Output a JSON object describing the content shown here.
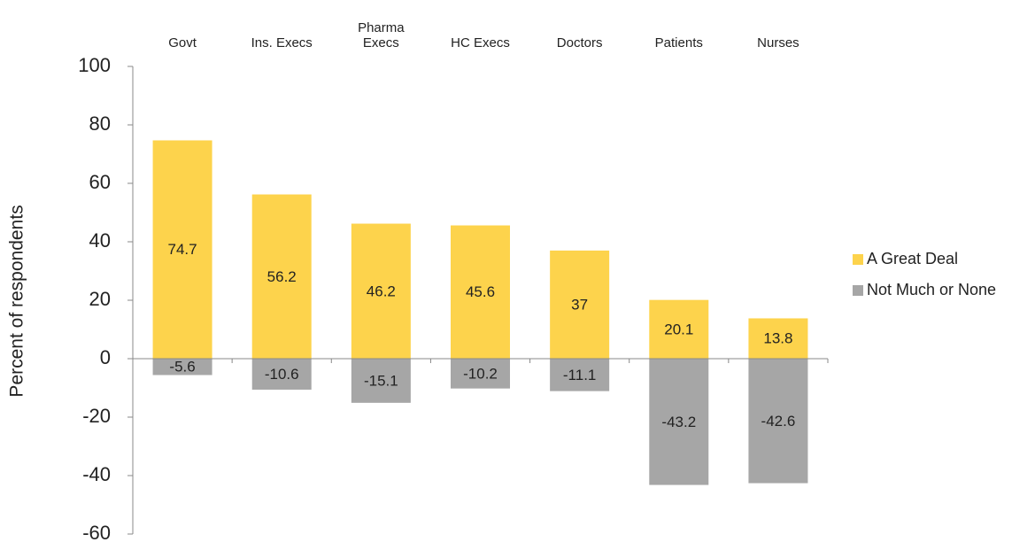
{
  "chart_data": {
    "type": "bar",
    "stacked": true,
    "y_label": "Percent of respondents",
    "categories": [
      "Govt",
      "Ins. Execs",
      "Pharma Execs",
      "HC Execs",
      "Doctors",
      "Patients",
      "Nurses"
    ],
    "series": [
      {
        "name": "A Great Deal",
        "color": "#fdd34c",
        "values": [
          74.7,
          56.2,
          46.2,
          45.6,
          37,
          20.1,
          13.8
        ]
      },
      {
        "name": "Not Much or None",
        "color": "#a6a6a6",
        "values": [
          -5.6,
          -10.6,
          -15.1,
          -10.2,
          -11.1,
          -43.2,
          -42.6
        ]
      }
    ],
    "ylim": [
      -60,
      100
    ],
    "yticks": [
      -60,
      -40,
      -20,
      0,
      20,
      40,
      60,
      80,
      100
    ],
    "legend": "right"
  }
}
